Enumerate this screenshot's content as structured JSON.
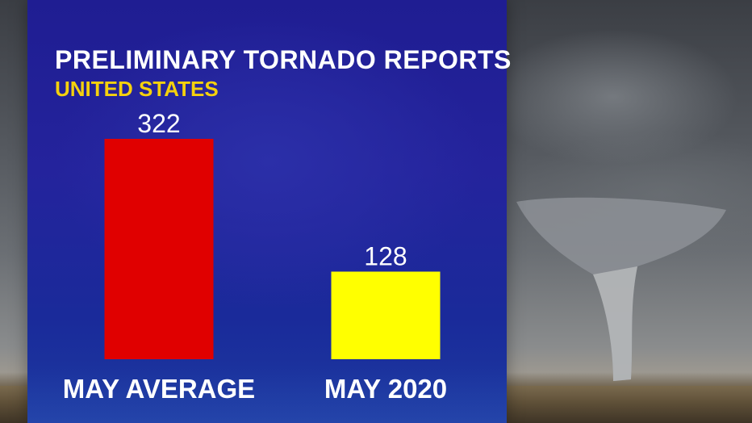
{
  "chart_data": {
    "type": "bar",
    "title": "PRELIMINARY TORNADO REPORTS",
    "subtitle": "UNITED STATES",
    "categories": [
      "MAY AVERAGE",
      "MAY 2020"
    ],
    "values": [
      322,
      128
    ],
    "value_labels": [
      "322",
      "128"
    ],
    "bar_colors": [
      "#e00000",
      "#ffff00"
    ],
    "ylim": [
      0,
      322
    ],
    "grid": false,
    "legend": "none"
  },
  "colors": {
    "panel": "#22229a",
    "title": "#ffffff",
    "subtitle": "#f5d10d"
  },
  "background": {
    "icon": "tornado-photo"
  }
}
